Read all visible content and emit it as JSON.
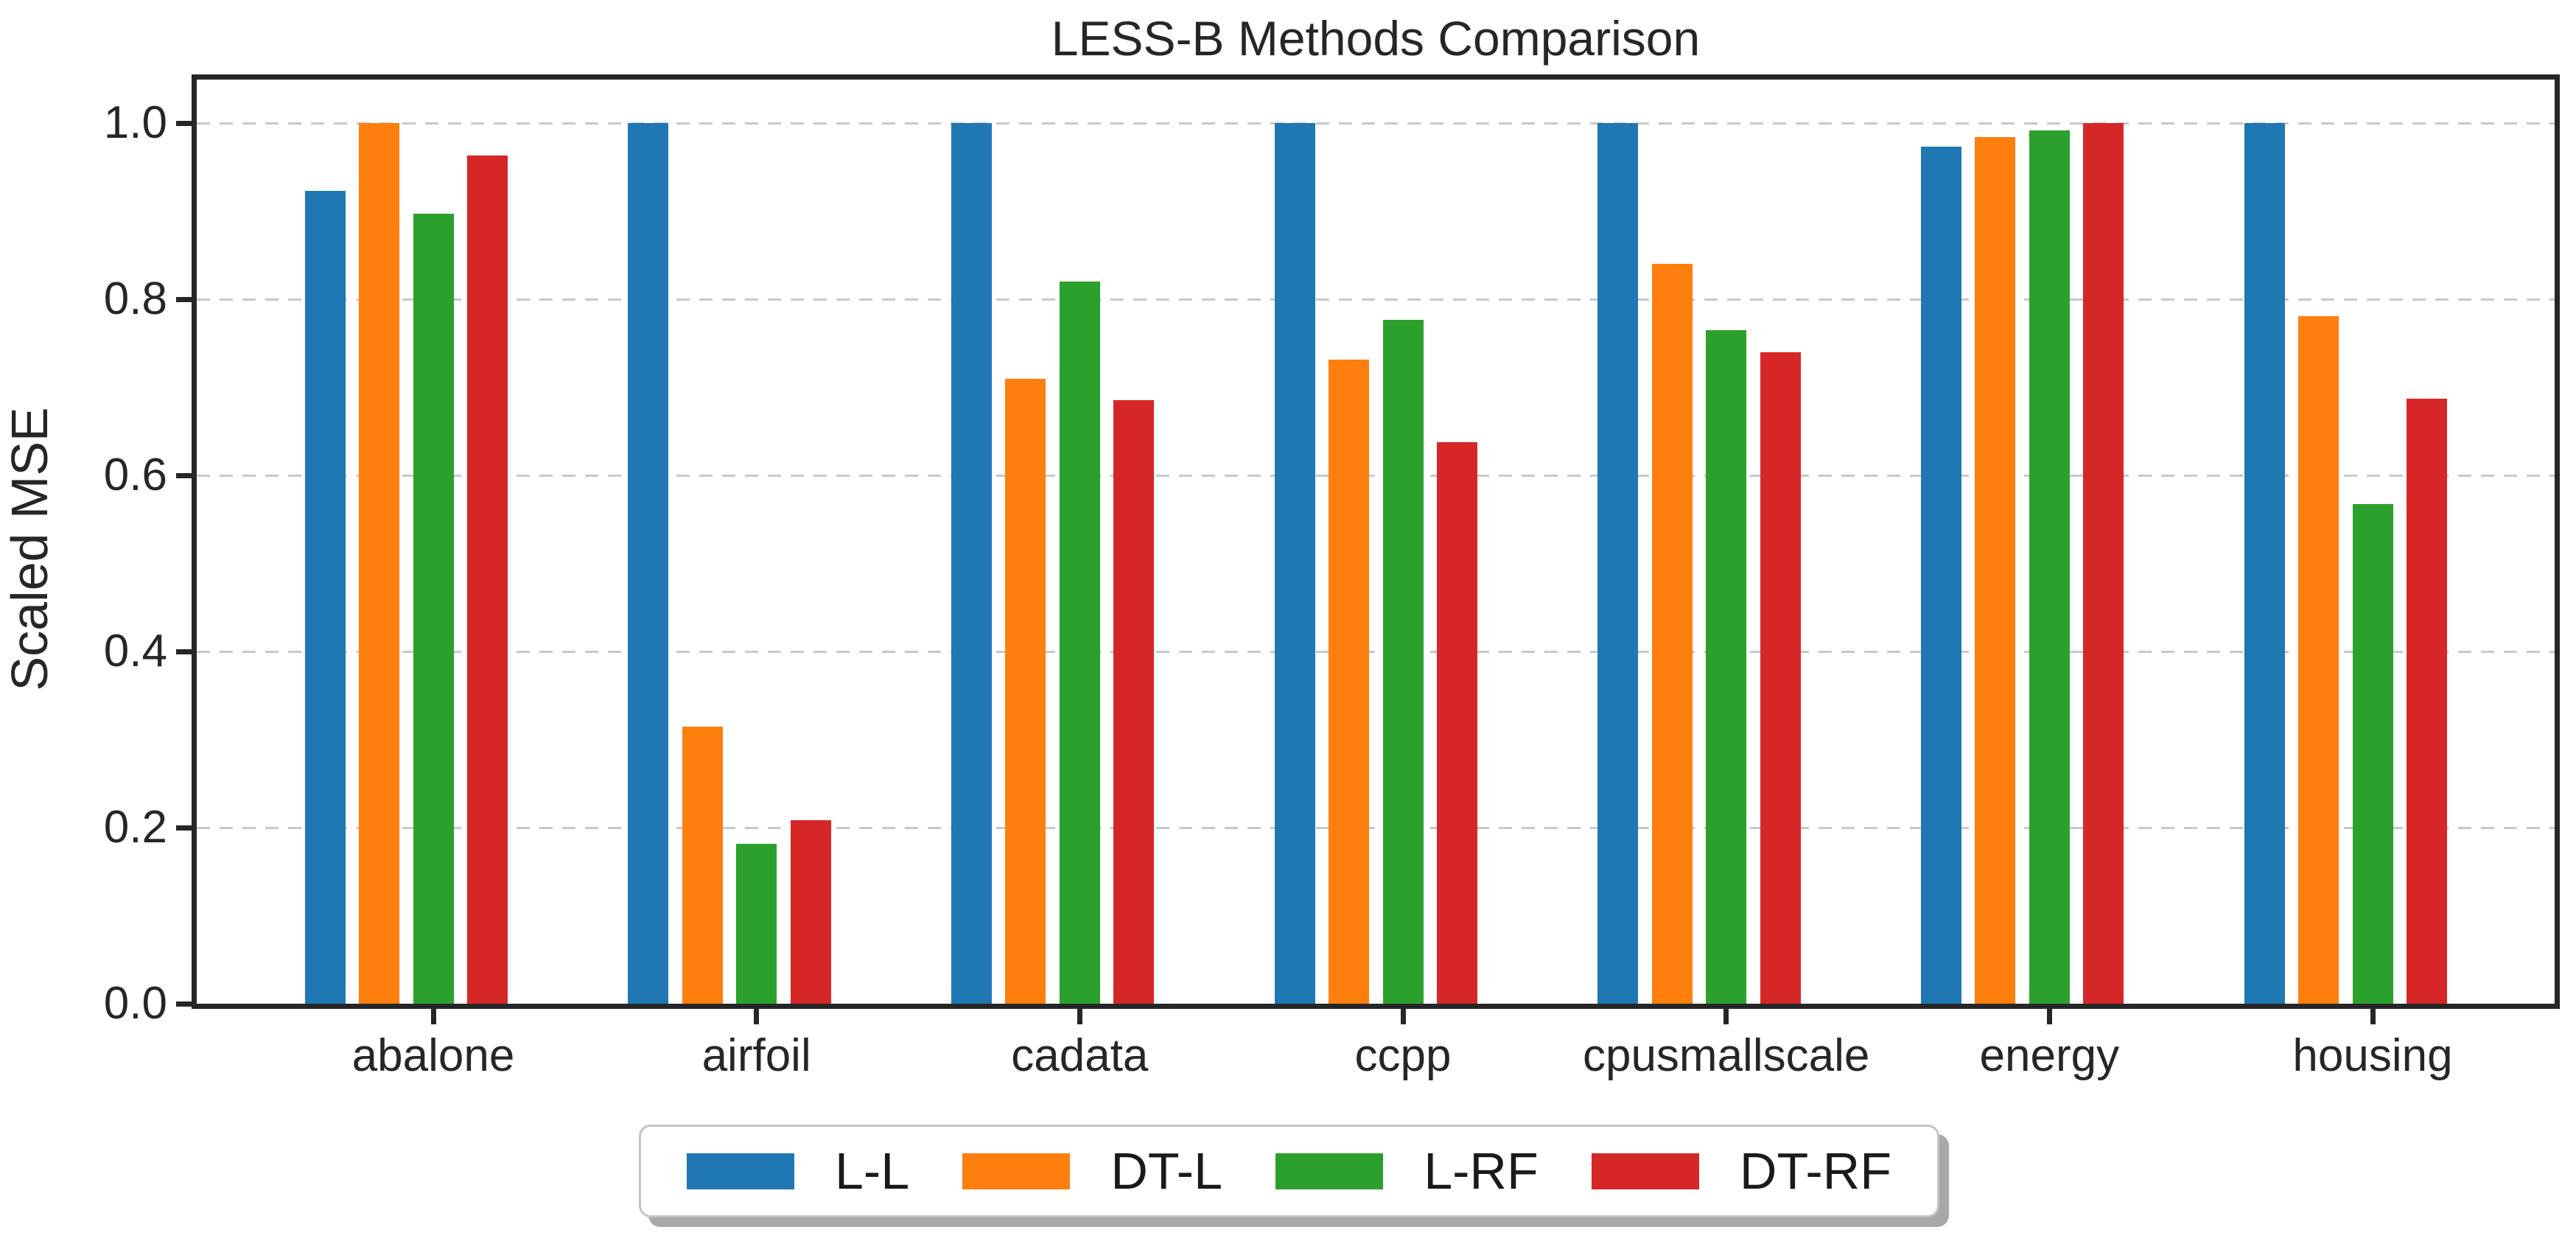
{
  "chart_data": {
    "type": "bar",
    "title": "LESS-B Methods Comparison",
    "ylabel": "Scaled MSE",
    "xlabel": "",
    "categories": [
      "abalone",
      "airfoil",
      "cadata",
      "ccpp",
      "cpusmallscale",
      "energy",
      "housing"
    ],
    "series": [
      {
        "name": "L-L",
        "color": "#1f77b4",
        "values": [
          0.923,
          1.0,
          1.0,
          1.0,
          1.0,
          0.973,
          1.0
        ]
      },
      {
        "name": "DT-L",
        "color": "#ff7f0e",
        "values": [
          1.0,
          0.315,
          0.71,
          0.731,
          0.84,
          0.984,
          0.781
        ]
      },
      {
        "name": "L-RF",
        "color": "#2ca02c",
        "values": [
          0.897,
          0.182,
          0.82,
          0.777,
          0.765,
          0.992,
          0.567
        ]
      },
      {
        "name": "DT-RF",
        "color": "#d62728",
        "values": [
          0.963,
          0.208,
          0.685,
          0.638,
          0.74,
          1.0,
          0.687
        ]
      }
    ],
    "ylim": [
      0,
      1.05
    ],
    "yticks": [
      0.0,
      0.2,
      0.4,
      0.6,
      0.8,
      1.0
    ],
    "ytick_labels": [
      "0.0",
      "0.2",
      "0.4",
      "0.6",
      "0.8",
      "1.0"
    ],
    "grid": true,
    "grid_style": "dashed-horizontal",
    "legend_position": "bottom-center"
  },
  "colors": {
    "spine": "#262626",
    "grid": "#c8c8c8",
    "text": "#1a1a1a",
    "legend_border": "#c4c4c4",
    "legend_shadow": "#a8a8a8",
    "background": "#ffffff"
  }
}
